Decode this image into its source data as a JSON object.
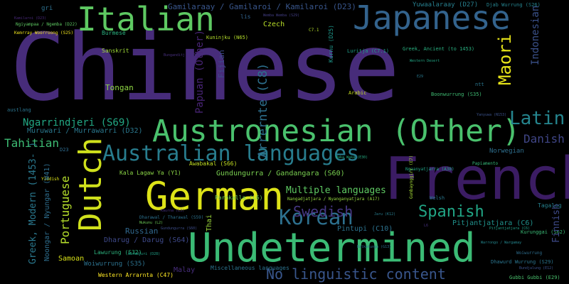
{
  "words": [
    {
      "text": "Chinese",
      "color": "#472c7a"
    },
    {
      "text": "French",
      "color": "#3b1c63"
    },
    {
      "text": "Italian",
      "color": "#5ec962"
    },
    {
      "text": "Japanese",
      "color": "#33638d"
    },
    {
      "text": "Undetermined",
      "color": "#3bbb75"
    },
    {
      "text": "German",
      "color": "#dde318"
    },
    {
      "text": "Austronesian (Other)",
      "color": "#4ac16d"
    },
    {
      "text": "Australian languages",
      "color": "#287d8e"
    },
    {
      "text": "Dutch",
      "color": "#d0e11c"
    },
    {
      "text": "Korean",
      "color": "#2d708e"
    },
    {
      "text": "Latin",
      "color": "#25858e"
    },
    {
      "text": "Maori",
      "color": "#e7e419"
    },
    {
      "text": "Spanish",
      "color": "#21a585"
    },
    {
      "text": "Swedish",
      "color": "#453781"
    },
    {
      "text": "No linguistic content",
      "color": "#39568c"
    },
    {
      "text": "Portuguese",
      "color": "#b5de2b"
    },
    {
      "text": "Arrernte (C8)",
      "color": "#2d708e"
    },
    {
      "text": "Indonesian",
      "color": "#3b528b"
    },
    {
      "text": "Danish",
      "color": "#404688"
    },
    {
      "text": "Tahitian",
      "color": "#3dbc74"
    },
    {
      "text": "Ngarrindjeri (S69)",
      "color": "#22a884"
    },
    {
      "text": "Muruwari / Murrawarri (D32)",
      "color": "#2a788e"
    },
    {
      "text": "Gamilaraay / Gamilaroi / Kamilaroi (D23)",
      "color": "#39568c"
    },
    {
      "text": "Yuwaalaraay (D27)",
      "color": "#277f8e"
    },
    {
      "text": "Djab Wurrung (S26)",
      "color": "#25838e"
    },
    {
      "text": "Multiple languages",
      "color": "#5ec962"
    },
    {
      "text": "Gundungurra / Gandangara (S60)",
      "color": "#7ad151"
    },
    {
      "text": "Pintupi (C10)",
      "color": "#2c728e"
    },
    {
      "text": "Pitjantjatjara (C6)",
      "color": "#21918c"
    },
    {
      "text": "Russian",
      "color": "#31688e"
    },
    {
      "text": "Greek, Modern (1453- )",
      "color": "#2a788e"
    },
    {
      "text": "Noongar / Nyungar (W41)",
      "color": "#2e6e8e"
    },
    {
      "text": "Western Arrarnta (C47)",
      "color": "#fde725"
    },
    {
      "text": "Tongan",
      "color": "#8fd744"
    },
    {
      "text": "Papuan (Other)",
      "color": "#482475"
    },
    {
      "text": "Fijian",
      "color": "#3e4989"
    },
    {
      "text": "Czech",
      "color": "#b8de29"
    },
    {
      "text": "Sanskrit",
      "color": "#a0da39"
    },
    {
      "text": "Burmese",
      "color": "#2ab07f"
    },
    {
      "text": "Finnish",
      "color": "#3e4a89"
    },
    {
      "text": "Tagalog",
      "color": "#26818e"
    },
    {
      "text": "Norwegian",
      "color": "#2e6f8e"
    },
    {
      "text": "Welsh",
      "color": "#2a788e"
    },
    {
      "text": "Samoan",
      "color": "#d8e219"
    },
    {
      "text": "Woiwurrung (S35)",
      "color": "#2c728e"
    },
    {
      "text": "Dharug / Darug (S64)",
      "color": "#3e4989"
    },
    {
      "text": "Malay",
      "color": "#472d7b"
    },
    {
      "text": "Miscellaneous languages",
      "color": "#2c738e"
    },
    {
      "text": "Kala Lagaw Ya (Y1)",
      "color": "#8bd646"
    },
    {
      "text": "Awabakal (S66)",
      "color": "#c2df23"
    },
    {
      "text": "Parnkalla (L6)",
      "color": "#6ccd5a"
    },
    {
      "text": "Greek, Ancient (to 1453)",
      "color": "#29af7f"
    },
    {
      "text": "Boonwurrung (S35)",
      "color": "#3fbc73"
    },
    {
      "text": "Kuninjku (N65)",
      "color": "#b5de2b"
    },
    {
      "text": "Thai",
      "color": "#9dd93b"
    },
    {
      "text": "Luritja (C7.1)",
      "color": "#1f9f88"
    },
    {
      "text": "Arabic",
      "color": "#c8e020"
    },
    {
      "text": "Wemba Wemba (S29)",
      "color": "#433e85"
    },
    {
      "text": "Ngaanyatjarra (A38)",
      "color": "#20a486"
    },
    {
      "text": "Papiamento",
      "color": "#35b779"
    },
    {
      "text": "Ngiyampaa / Ngemba (D22)",
      "color": "#5ec962"
    },
    {
      "text": "Kamilaroi (D23)",
      "color": "#482878"
    },
    {
      "text": "Kemrray Woorroong (S25)",
      "color": "#f1e51d"
    },
    {
      "text": "Yiddish",
      "color": "#dde318"
    },
    {
      "text": "Lawurung (S32)",
      "color": "#2db27d"
    },
    {
      "text": "Dhawurd Wurrung (S29)",
      "color": "#2b758e"
    },
    {
      "text": "Kurunggai (S62)",
      "color": "#3aba76"
    },
    {
      "text": "Gubbi Gubbi (E29)",
      "color": "#4ac16d"
    },
    {
      "text": "Bundjalung (E12)",
      "color": "#3b528b"
    },
    {
      "text": "Kurnu (D25)",
      "color": "#1f978b"
    },
    {
      "text": "Pitjantjatjara (C6)",
      "color": "#1fa088"
    },
    {
      "text": "Dharawal / Tharawal (S59)",
      "color": "#2c718e"
    },
    {
      "text": "Nukunu (L2)",
      "color": "#6ece58"
    },
    {
      "text": "Gundungurra (S60)",
      "color": "#3d4d8a"
    },
    {
      "text": "Nangadjatjara / Nyanganyatjara (A17)",
      "color": "#95d840"
    },
    {
      "text": "Warrongo / Wargamay",
      "color": "#24878e"
    },
    {
      "text": "Woiwurrung",
      "color": "#2e6e8e"
    },
    {
      "text": "Bunganditj (S13)",
      "color": "#472f7d"
    },
    {
      "text": "Kaurna (L3)",
      "color": "#46327e"
    },
    {
      "text": "Western Desert",
      "color": "#22a785"
    },
    {
      "text": "Waka Waka (E30)",
      "color": "#25ac82"
    },
    {
      "text": "Wiradjuri (D28)",
      "color": "#1fa187"
    },
    {
      "text": "Jaru (K12)",
      "color": "#287d8e"
    },
    {
      "text": "Kalkatungu (G13)",
      "color": "#2c728e"
    },
    {
      "text": "Gumbaynggirr (E7)",
      "color": "#a5db36"
    },
    {
      "text": "Yanyuwa (N153)",
      "color": "#3b528b"
    },
    {
      "text": "gri",
      "color": "#2d708e"
    },
    {
      "text": "lis",
      "color": "#32648e"
    },
    {
      "text": "C7.1",
      "color": "#b5de2b"
    },
    {
      "text": "D23",
      "color": "#2f6c8e"
    },
    {
      "text": "ntt",
      "color": "#2a768e"
    },
    {
      "text": "L6",
      "color": "#46307e"
    },
    {
      "text": "E29",
      "color": "#29798e"
    },
    {
      "text": "austlang",
      "color": "#2b748e"
    }
  ]
}
